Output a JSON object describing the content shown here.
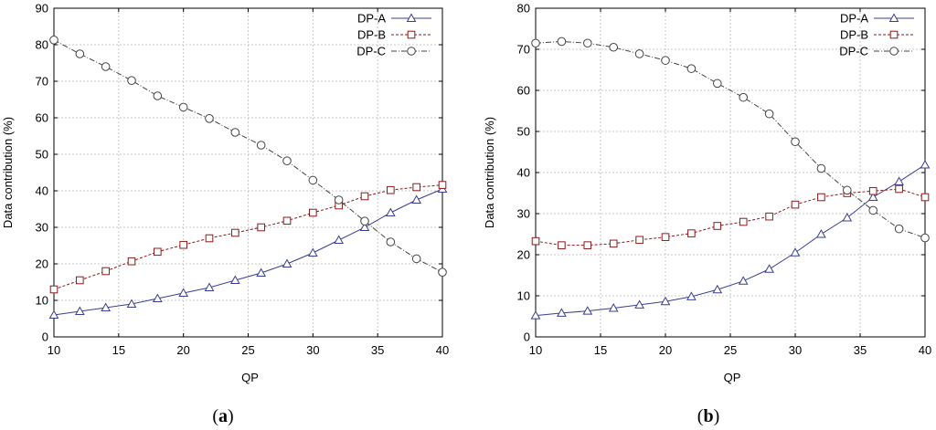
{
  "colors": {
    "dp_a": "#3a3f8f",
    "dp_b": "#8b1a1a",
    "dp_c": "#444444",
    "grid": "#c8c8c8"
  },
  "chart_data": [
    {
      "type": "line",
      "panel_label": "a",
      "xlabel": "QP",
      "ylabel": "Data contribution (%)",
      "xlim": [
        10,
        40
      ],
      "ylim": [
        0,
        90
      ],
      "xticks": [
        10,
        15,
        20,
        25,
        30,
        35,
        40
      ],
      "yticks": [
        0,
        10,
        20,
        30,
        40,
        50,
        60,
        70,
        80,
        90
      ],
      "legend_position": "top-right",
      "x": [
        10,
        12,
        14,
        16,
        18,
        20,
        22,
        24,
        26,
        28,
        30,
        32,
        34,
        36,
        38,
        40
      ],
      "series": [
        {
          "name": "DP-A",
          "marker": "triangle",
          "values": [
            6,
            7,
            8,
            9,
            10.5,
            12,
            13.5,
            15.5,
            17.5,
            20,
            23,
            26.5,
            30,
            34,
            37.5,
            40.5
          ]
        },
        {
          "name": "DP-B",
          "marker": "square",
          "values": [
            13,
            15.5,
            18,
            20.7,
            23.3,
            25.2,
            27,
            28.5,
            30,
            31.8,
            34,
            36,
            38.5,
            40.2,
            41,
            41.6
          ]
        },
        {
          "name": "DP-C",
          "marker": "circle",
          "values": [
            81.3,
            77.5,
            74,
            70.2,
            66,
            62.9,
            59.8,
            56,
            52.5,
            48.2,
            42.9,
            37.5,
            31.7,
            26,
            21.4,
            17.7
          ]
        }
      ]
    },
    {
      "type": "line",
      "panel_label": "b",
      "xlabel": "QP",
      "ylabel": "Data contribution (%)",
      "xlim": [
        10,
        40
      ],
      "ylim": [
        0,
        80
      ],
      "xticks": [
        10,
        15,
        20,
        25,
        30,
        35,
        40
      ],
      "yticks": [
        0,
        10,
        20,
        30,
        40,
        50,
        60,
        70,
        80
      ],
      "legend_position": "top-right",
      "x": [
        10,
        12,
        14,
        16,
        18,
        20,
        22,
        24,
        26,
        28,
        30,
        32,
        34,
        36,
        38,
        40
      ],
      "series": [
        {
          "name": "DP-A",
          "marker": "triangle",
          "values": [
            5.2,
            5.8,
            6.3,
            7,
            7.8,
            8.6,
            9.8,
            11.5,
            13.6,
            16.5,
            20.5,
            25,
            29,
            34,
            37.8,
            41.9
          ]
        },
        {
          "name": "DP-B",
          "marker": "square",
          "values": [
            23.3,
            22.3,
            22.3,
            22.7,
            23.6,
            24.3,
            25.2,
            27,
            28,
            29.3,
            32.2,
            34,
            35,
            35.5,
            36,
            34
          ]
        },
        {
          "name": "DP-C",
          "marker": "circle",
          "values": [
            71.5,
            71.9,
            71.5,
            70.5,
            68.9,
            67.3,
            65.3,
            61.7,
            58.3,
            54.3,
            47.5,
            41,
            35.7,
            30.8,
            26.3,
            24.1
          ]
        }
      ]
    }
  ]
}
